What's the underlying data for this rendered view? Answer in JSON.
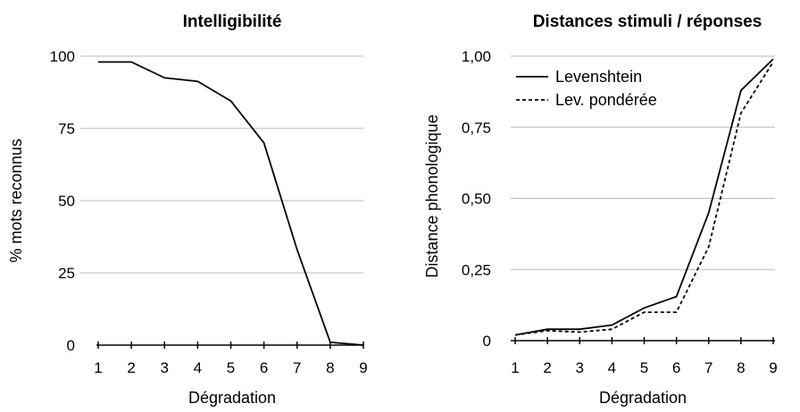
{
  "chart_data": [
    {
      "type": "line",
      "title": "Intelligibilité",
      "xlabel": "Dégradation",
      "ylabel": "% mots reconnus",
      "x": [
        1,
        2,
        3,
        4,
        5,
        6,
        7,
        8,
        9
      ],
      "x_tick_labels": [
        "1",
        "2",
        "3",
        "4",
        "5",
        "6",
        "7",
        "8",
        "9"
      ],
      "ylim": [
        0,
        100
      ],
      "y_ticks": [
        0,
        25,
        50,
        75,
        100
      ],
      "y_tick_labels": [
        "0",
        "25",
        "50",
        "75",
        "100"
      ],
      "grid": true,
      "legend": "none",
      "series": [
        {
          "values": [
            98,
            98,
            92.5,
            91.3,
            84.5,
            70,
            33,
            1,
            0
          ],
          "style": "solid"
        }
      ]
    },
    {
      "type": "line",
      "title": "Distances stimuli / réponses",
      "xlabel": "Dégradation",
      "ylabel": "Distance phonologique",
      "x": [
        1,
        2,
        3,
        4,
        5,
        6,
        7,
        8,
        9
      ],
      "x_tick_labels": [
        "1",
        "2",
        "3",
        "4",
        "5",
        "6",
        "7",
        "8",
        "9"
      ],
      "ylim": [
        0,
        1
      ],
      "y_ticks": [
        0,
        0.25,
        0.5,
        0.75,
        1
      ],
      "y_tick_labels": [
        "0",
        "0,25",
        "0,50",
        "0,75",
        "1,00"
      ],
      "grid": true,
      "legend": "top-left",
      "series": [
        {
          "name": "Levenshtein",
          "values": [
            0.02,
            0.04,
            0.04,
            0.055,
            0.115,
            0.155,
            0.45,
            0.88,
            0.99
          ],
          "style": "solid"
        },
        {
          "name": "Lev. pondérée",
          "values": [
            0.02,
            0.035,
            0.03,
            0.04,
            0.1,
            0.1,
            0.33,
            0.8,
            0.98
          ],
          "style": "dashed"
        }
      ]
    }
  ]
}
